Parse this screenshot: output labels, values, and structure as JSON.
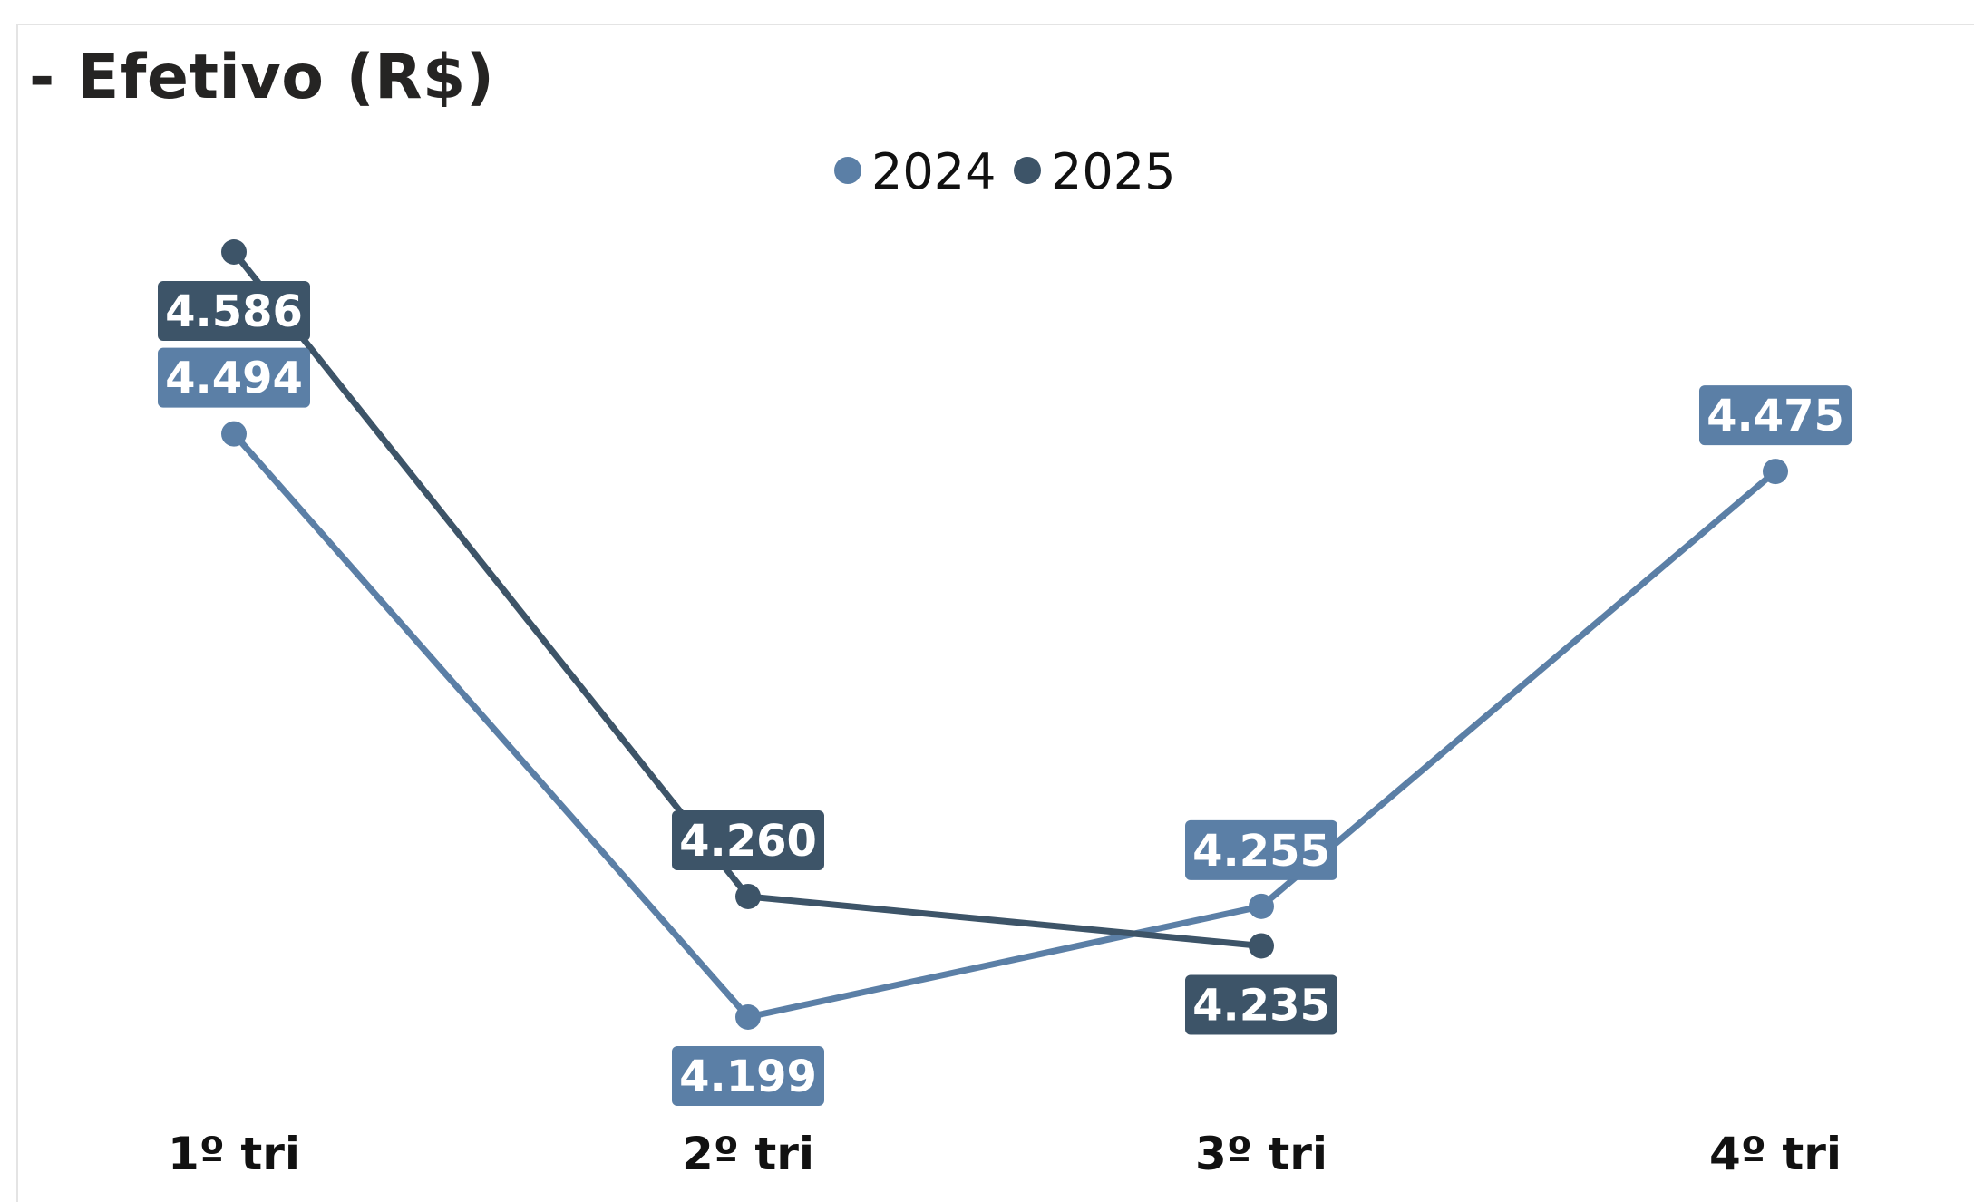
{
  "title": "- Efetivo (R$)",
  "chart_data": {
    "type": "line",
    "title": "- Efetivo (R$)",
    "categories": [
      "1º tri",
      "2º tri",
      "3º tri",
      "4º tri"
    ],
    "series": [
      {
        "name": "2024",
        "color": "#5B7FA6",
        "values": [
          4494,
          4199,
          4255,
          4475
        ],
        "labels": [
          "4.494",
          "4.199",
          "4.255",
          "4.475"
        ]
      },
      {
        "name": "2025",
        "color": "#3D5468",
        "values": [
          4586,
          4260,
          4235,
          null
        ],
        "labels": [
          "4.586",
          "4.260",
          "4.235",
          null
        ]
      }
    ],
    "xlabel": "",
    "ylabel": "",
    "grid": false,
    "legend": "top-center"
  }
}
